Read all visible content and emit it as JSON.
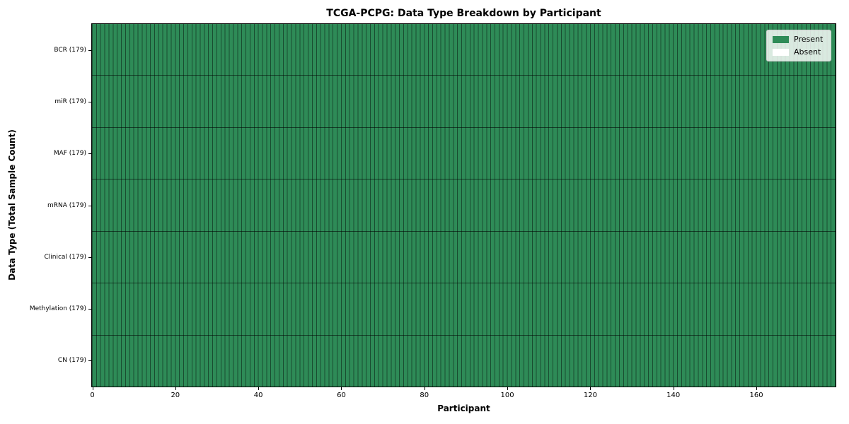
{
  "colors": {
    "present": "#2e8b57",
    "absent": "#ffffff",
    "cell_edge": "rgba(0,0,0,0.45)",
    "legend_border": "#cccccc",
    "text": "#000000"
  },
  "legend": {
    "present_label": "Present",
    "absent_label": "Absent"
  },
  "chart_data": {
    "type": "heatmap",
    "title": "TCGA-PCPG: Data Type Breakdown by Participant",
    "xlabel": "Participant",
    "ylabel": "Data Type (Total Sample Count)",
    "x_range": [
      0,
      179
    ],
    "n_participants": 179,
    "xticks": [
      0,
      20,
      40,
      60,
      80,
      100,
      120,
      140,
      160
    ],
    "legend_entries": [
      "Present",
      "Absent"
    ],
    "legend_position": "upper right",
    "grid": "cell borders on",
    "rows": [
      {
        "label": "BCR (179)",
        "data_type": "BCR",
        "total": 179,
        "present": 179,
        "absent": 0
      },
      {
        "label": "miR (179)",
        "data_type": "miR",
        "total": 179,
        "present": 179,
        "absent": 0
      },
      {
        "label": "MAF (179)",
        "data_type": "MAF",
        "total": 179,
        "present": 179,
        "absent": 0
      },
      {
        "label": "mRNA (179)",
        "data_type": "mRNA",
        "total": 179,
        "present": 179,
        "absent": 0
      },
      {
        "label": "Clinical (179)",
        "data_type": "Clinical",
        "total": 179,
        "present": 179,
        "absent": 0
      },
      {
        "label": "Methylation (179)",
        "data_type": "Methylation",
        "total": 179,
        "present": 179,
        "absent": 0
      },
      {
        "label": "CN (179)",
        "data_type": "CN",
        "total": 179,
        "present": 179,
        "absent": 0
      }
    ]
  }
}
